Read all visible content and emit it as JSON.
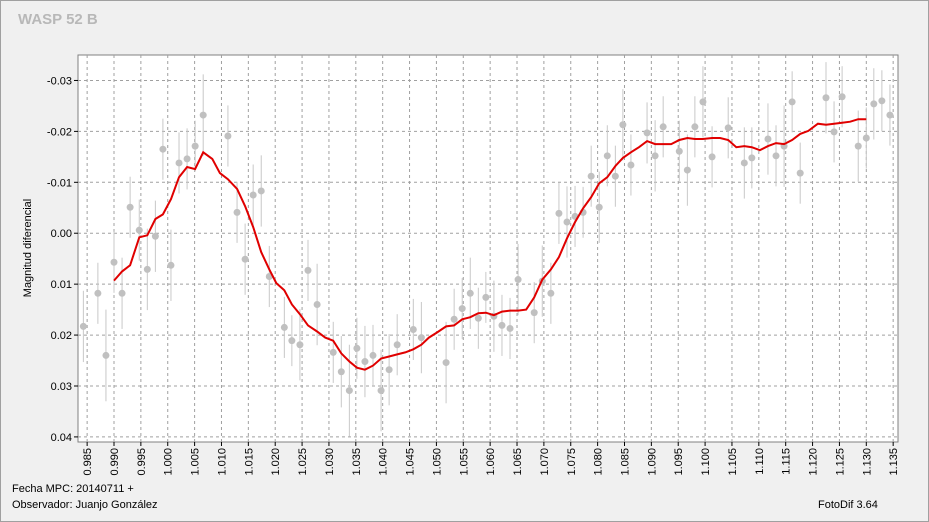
{
  "chart_data": {
    "type": "scatter",
    "title": "WASP 52 B",
    "y_label": "Magnitud diferencial",
    "notes": [
      "Fecha MPC: 20140711 +",
      "Observador: Juanjo González",
      "FotoDif 3.64"
    ],
    "xlim": [
      0.9833,
      1.1359
    ],
    "ylim": [
      -0.035,
      0.041
    ],
    "inverted_y": true,
    "grid": true,
    "xticks": [
      0.985,
      {
        "value": 0.99,
        "label": "0.990"
      },
      0.995,
      {
        "value": 1,
        "label": "1.000"
      },
      1.005,
      {
        "value": 1.01,
        "label": "1.010"
      },
      1.015,
      {
        "value": 1.02,
        "label": "1.020"
      },
      1.025,
      {
        "value": 1.03,
        "label": "1.030"
      },
      1.035,
      {
        "value": 1.04,
        "label": "1.040"
      },
      1.045,
      {
        "value": 1.05,
        "label": "1.050"
      },
      1.055,
      {
        "value": 1.06,
        "label": "1.060"
      },
      1.065,
      {
        "value": 1.07,
        "label": "1.070"
      },
      1.075,
      {
        "value": 1.08,
        "label": "1.080"
      },
      1.085,
      {
        "value": 1.09,
        "label": "1.090"
      },
      1.095,
      {
        "value": 1.1,
        "label": "1.100"
      },
      1.105,
      {
        "value": 1.11,
        "label": "1.110"
      },
      1.115,
      {
        "value": 1.12,
        "label": "1.120"
      },
      1.125,
      {
        "value": 1.13,
        "label": "1.130"
      },
      1.135
    ],
    "yticks": [
      -0.03,
      -0.02,
      -0.01,
      {
        "value": 0,
        "label": "0.00"
      },
      0.01,
      0.02,
      0.03,
      0.04
    ],
    "points": {
      "color": "#c0c0c0",
      "x": [
        0.9843,
        0.987,
        0.9885,
        0.99,
        0.9915,
        0.993,
        0.9947,
        0.9962,
        0.9977,
        0.9991,
        1.0006,
        1.0021,
        1.0036,
        1.0051,
        1.0066,
        1.0112,
        1.0129,
        1.0144,
        1.0159,
        1.0174,
        1.0189,
        1.0217,
        1.0231,
        1.0246,
        1.0261,
        1.0278,
        1.0308,
        1.0323,
        1.0338,
        1.0352,
        1.0367,
        1.0382,
        1.0397,
        1.0412,
        1.0427,
        1.0457,
        1.0472,
        1.0518,
        1.0533,
        1.0548,
        1.0563,
        1.0578,
        1.0592,
        1.0607,
        1.0622,
        1.0637,
        1.0652,
        1.0682,
        1.0697,
        1.0713,
        1.0728,
        1.0743,
        1.0758,
        1.0773,
        1.0788,
        1.0803,
        1.0818,
        1.0833,
        1.0847,
        1.0862,
        1.0892,
        1.0907,
        1.0922,
        1.0952,
        1.0967,
        1.0981,
        1.0996,
        1.1013,
        1.1043,
        1.1073,
        1.1087,
        1.1117,
        1.1132,
        1.1147,
        1.1162,
        1.1177,
        1.1225,
        1.124,
        1.1255,
        1.1285,
        1.13,
        1.1314,
        1.1329,
        1.1344
      ],
      "values": [
        0.0183,
        0.0118,
        0.024,
        0.0057,
        0.0118,
        -0.0051,
        -0.0006,
        0.0071,
        0.0006,
        -0.0165,
        0.0063,
        -0.0138,
        -0.0146,
        -0.0171,
        -0.0232,
        -0.0191,
        -0.0041,
        0.0051,
        -0.0075,
        -0.0083,
        0.0085,
        0.0185,
        0.0211,
        0.0219,
        0.0073,
        0.014,
        0.0234,
        0.0272,
        0.0309,
        0.0226,
        0.0252,
        0.024,
        0.0309,
        0.0268,
        0.0219,
        0.0189,
        0.0205,
        0.0254,
        0.0169,
        0.0148,
        0.0118,
        0.0167,
        0.0126,
        0.0163,
        0.0181,
        0.0187,
        0.0091,
        0.0156,
        0.0094,
        0.0118,
        -0.0039,
        -0.0022,
        -0.0033,
        -0.0041,
        -0.0112,
        -0.0051,
        -0.0152,
        -0.0112,
        -0.0213,
        -0.0134,
        -0.0197,
        -0.0152,
        -0.0209,
        -0.0161,
        -0.0124,
        -0.0209,
        -0.0258,
        -0.015,
        -0.0207,
        -0.0138,
        -0.0148,
        -0.0185,
        -0.0152,
        -0.0171,
        -0.0258,
        -0.0118,
        -0.0266,
        -0.0199,
        -0.0268,
        -0.0171,
        -0.0187,
        -0.0254,
        -0.026,
        -0.0232
      ],
      "errors": [
        0.007,
        0.006,
        0.009,
        0.006,
        0.007,
        0.006,
        0.006,
        0.008,
        0.007,
        0.006,
        0.007,
        0.006,
        0.006,
        0.005,
        0.008,
        0.006,
        0.006,
        0.007,
        0.006,
        0.007,
        0.006,
        0.006,
        0.005,
        0.007,
        0.006,
        0.008,
        0.006,
        0.007,
        0.009,
        0.006,
        0.007,
        0.006,
        0.008,
        0.007,
        0.006,
        0.006,
        0.007,
        0.008,
        0.006,
        0.006,
        0.007,
        0.006,
        0.005,
        0.007,
        0.006,
        0.006,
        0.007,
        0.006,
        0.007,
        0.006,
        0.006,
        0.007,
        0.006,
        0.005,
        0.006,
        0.007,
        0.006,
        0.006,
        0.007,
        0.006,
        0.006,
        0.007,
        0.006,
        0.006,
        0.007,
        0.006,
        0.007,
        0.006,
        0.006,
        0.007,
        0.006,
        0.007,
        0.006,
        0.008,
        0.006,
        0.006,
        0.007,
        0.006,
        0.006,
        0.007,
        0.006,
        0.007,
        0.006,
        0.006
      ]
    },
    "trend": {
      "color": "#e00000",
      "x": [
        0.99,
        0.9915,
        0.993,
        0.9947,
        0.9962,
        0.9977,
        0.9991,
        1.0006,
        1.0021,
        1.0036,
        1.0051,
        1.0066,
        1.0083,
        1.0097,
        1.0112,
        1.0129,
        1.0144,
        1.0159,
        1.0174,
        1.0189,
        1.0202,
        1.0217,
        1.0231,
        1.0246,
        1.0261,
        1.0278,
        1.0293,
        1.0308,
        1.0323,
        1.0338,
        1.0352,
        1.0367,
        1.0382,
        1.0397,
        1.0412,
        1.0427,
        1.0442,
        1.0457,
        1.0472,
        1.0486,
        1.0501,
        1.0518,
        1.0533,
        1.0548,
        1.0563,
        1.0578,
        1.0592,
        1.0607,
        1.0622,
        1.0637,
        1.0652,
        1.0667,
        1.0682,
        1.0697,
        1.0713,
        1.0728,
        1.0743,
        1.0758,
        1.0773,
        1.0788,
        1.0803,
        1.0818,
        1.0833,
        1.0847,
        1.0862,
        1.0877,
        1.0892,
        1.0907,
        1.0922,
        1.0937,
        1.0952,
        1.0967,
        1.0981,
        1.0996,
        1.1013,
        1.1028,
        1.1043,
        1.1058,
        1.1073,
        1.1087,
        1.1102,
        1.1117,
        1.1132,
        1.1147,
        1.1162,
        1.1177,
        1.1192,
        1.121,
        1.1225,
        1.124,
        1.1255,
        1.127,
        1.1285,
        1.13
      ],
      "values": [
        0.0093,
        0.0075,
        0.0063,
        0.0008,
        0.0004,
        -0.0028,
        -0.0037,
        -0.0067,
        -0.011,
        -0.013,
        -0.0126,
        -0.0159,
        -0.0146,
        -0.0118,
        -0.0106,
        -0.0087,
        -0.0053,
        -0.0012,
        0.0037,
        0.0071,
        0.0098,
        0.0112,
        0.014,
        0.0159,
        0.0181,
        0.0193,
        0.0205,
        0.0211,
        0.0236,
        0.0252,
        0.0264,
        0.0268,
        0.026,
        0.0246,
        0.0242,
        0.0238,
        0.0234,
        0.0228,
        0.0219,
        0.0205,
        0.0195,
        0.0183,
        0.0181,
        0.0169,
        0.0165,
        0.0157,
        0.0156,
        0.0161,
        0.0154,
        0.0152,
        0.0152,
        0.015,
        0.0126,
        0.0091,
        0.0071,
        0.0047,
        0.001,
        -0.0022,
        -0.0049,
        -0.0071,
        -0.0098,
        -0.011,
        -0.0132,
        -0.0148,
        -0.0159,
        -0.0169,
        -0.0181,
        -0.0175,
        -0.0175,
        -0.0175,
        -0.0183,
        -0.0187,
        -0.0185,
        -0.0185,
        -0.0187,
        -0.0187,
        -0.0183,
        -0.0169,
        -0.0171,
        -0.0169,
        -0.0163,
        -0.0171,
        -0.0177,
        -0.0175,
        -0.0183,
        -0.0195,
        -0.0201,
        -0.0215,
        -0.0213,
        -0.0215,
        -0.0217,
        -0.0219,
        -0.0224,
        -0.0224
      ]
    }
  }
}
